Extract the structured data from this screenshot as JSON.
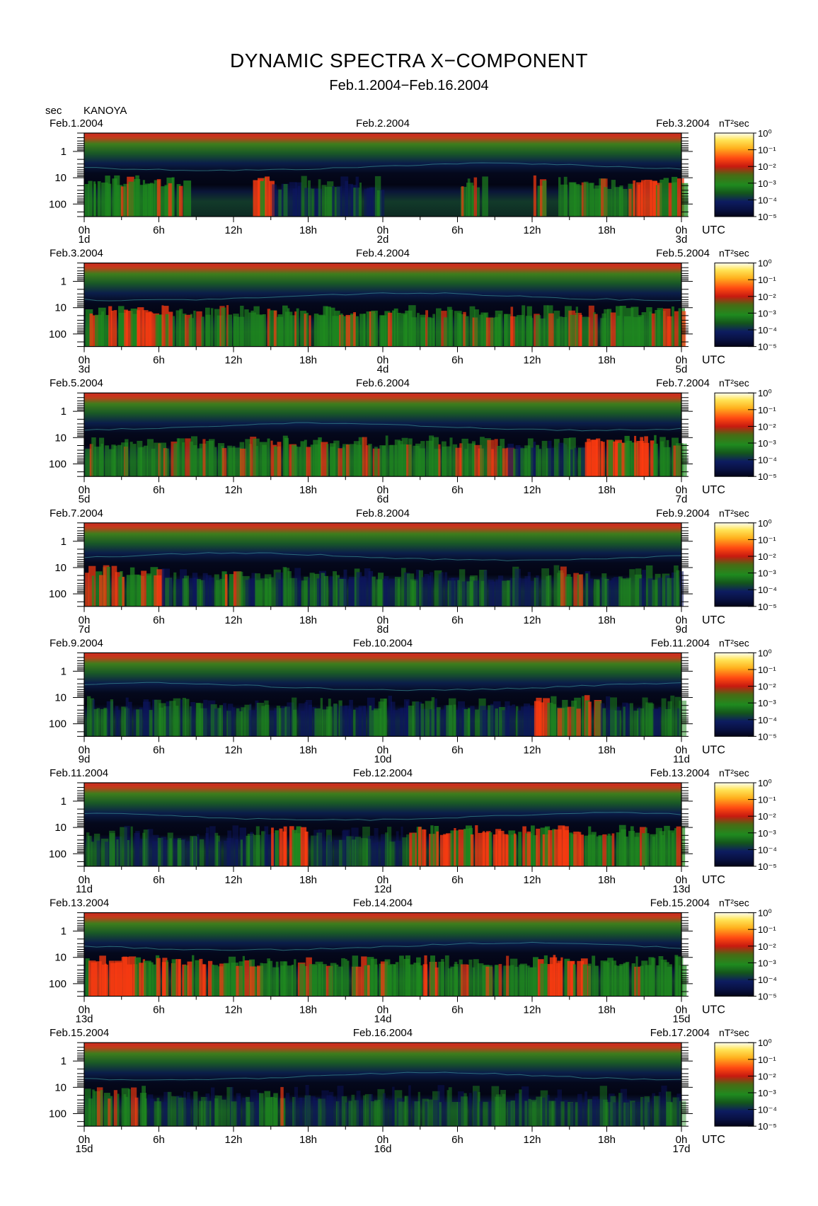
{
  "title": "DYNAMIC SPECTRA X−COMPONENT",
  "subtitle": "Feb.1.2004−Feb.16.2004",
  "unit_label": "sec",
  "station": "KANOYA",
  "colorbar_unit": "nT²sec",
  "colorbar_ticks": [
    "10⁰",
    "10⁻¹",
    "10⁻²",
    "10⁻³",
    "10⁻⁴",
    "10⁻⁵"
  ],
  "utc_label": "UTC",
  "y_ticks": [
    "1",
    "10",
    "100"
  ],
  "hour_ticks": [
    "0h",
    "6h",
    "12h",
    "18h",
    "0h",
    "6h",
    "12h",
    "18h",
    "0h"
  ],
  "colors": {
    "background": "#020418",
    "low": "#0d1560",
    "mid": "#1f8a1f",
    "high": "#ff3b10",
    "top_band": "#c83020"
  },
  "chart_data": {
    "type": "heatmap",
    "title": "DYNAMIC SPECTRA X−COMPONENT",
    "subtitle": "Feb.1.2004−Feb.16.2004",
    "ylabel": "sec",
    "ylim": [
      300,
      0.2
    ],
    "y_scale": "log",
    "y_inverted": true,
    "x_unit": "hours UTC",
    "color_scale": "log",
    "color_range": [
      1e-05,
      1
    ],
    "color_unit": "nT²sec",
    "panels": [
      {
        "left_date": "Feb.1.2004",
        "mid_date": "Feb.2.2004",
        "right_date": "Feb.3.2004",
        "start_day": "1d",
        "mid_day": "2d",
        "end_day": "3d",
        "activity": [
          [
            0,
            8,
            0.75
          ],
          [
            13.5,
            15,
            0.95
          ],
          [
            15,
            24,
            0.45
          ],
          [
            30,
            32,
            0.6
          ],
          [
            36,
            37,
            0.7
          ],
          [
            38,
            44,
            0.55
          ],
          [
            44,
            48,
            0.8
          ]
        ]
      },
      {
        "left_date": "Feb.3.2004",
        "mid_date": "Feb.4.2004",
        "right_date": "Feb.5.2004",
        "start_day": "3d",
        "mid_day": "4d",
        "end_day": "5d",
        "activity": [
          [
            0,
            7,
            0.8
          ],
          [
            7,
            14,
            0.6
          ],
          [
            14,
            18,
            0.7
          ],
          [
            18,
            26,
            0.75
          ],
          [
            26,
            36,
            0.6
          ],
          [
            36,
            42,
            0.55
          ],
          [
            42,
            48,
            0.7
          ]
        ]
      },
      {
        "left_date": "Feb.5.2004",
        "mid_date": "Feb.6.2004",
        "right_date": "Feb.7.2004",
        "start_day": "5d",
        "mid_day": "6d",
        "end_day": "7d",
        "activity": [
          [
            0,
            14,
            0.55
          ],
          [
            14,
            20,
            0.7
          ],
          [
            20,
            34,
            0.55
          ],
          [
            34,
            40,
            0.5
          ],
          [
            40,
            46,
            0.85
          ],
          [
            46,
            48,
            0.6
          ]
        ]
      },
      {
        "left_date": "Feb.7.2004",
        "mid_date": "Feb.8.2004",
        "right_date": "Feb.9.2004",
        "start_day": "7d",
        "mid_day": "8d",
        "end_day": "9d",
        "activity": [
          [
            0,
            6,
            0.7
          ],
          [
            6,
            11,
            0.45
          ],
          [
            11,
            12,
            0.8
          ],
          [
            12,
            18,
            0.35
          ],
          [
            18,
            24,
            0.5
          ],
          [
            24,
            30,
            0.35
          ],
          [
            30,
            38,
            0.3
          ],
          [
            38,
            40,
            0.55
          ],
          [
            40,
            48,
            0.45
          ]
        ]
      },
      {
        "left_date": "Feb.9.2004",
        "mid_date": "Feb.10.2004",
        "right_date": "Feb.11.2004",
        "start_day": "9d",
        "mid_day": "10d",
        "end_day": "11d",
        "activity": [
          [
            0,
            9,
            0.45
          ],
          [
            9,
            18,
            0.35
          ],
          [
            18,
            30,
            0.45
          ],
          [
            30,
            36,
            0.4
          ],
          [
            36,
            37,
            0.8
          ],
          [
            37,
            40,
            0.55
          ],
          [
            40,
            41,
            0.8
          ],
          [
            41,
            48,
            0.35
          ]
        ]
      },
      {
        "left_date": "Feb.11.2004",
        "mid_date": "Feb.12.2004",
        "right_date": "Feb.13.2004",
        "start_day": "11d",
        "mid_day": "12d",
        "end_day": "13d",
        "activity": [
          [
            0,
            12,
            0.3
          ],
          [
            12,
            15,
            0.45
          ],
          [
            15,
            18,
            0.9
          ],
          [
            18,
            26,
            0.2
          ],
          [
            26,
            40,
            0.8
          ],
          [
            40,
            48,
            0.7
          ]
        ]
      },
      {
        "left_date": "Feb.13.2004",
        "mid_date": "Feb.14.2004",
        "right_date": "Feb.15.2004",
        "start_day": "13d",
        "mid_day": "14d",
        "end_day": "15d",
        "activity": [
          [
            0,
            10,
            0.8
          ],
          [
            10,
            14,
            0.7
          ],
          [
            14,
            22,
            0.65
          ],
          [
            22,
            28,
            0.75
          ],
          [
            28,
            36,
            0.55
          ],
          [
            36,
            40,
            0.85
          ],
          [
            40,
            48,
            0.7
          ]
        ]
      },
      {
        "left_date": "Feb.15.2004",
        "mid_date": "Feb.16.2004",
        "right_date": "Feb.17.2004",
        "start_day": "15d",
        "mid_day": "16d",
        "end_day": "17d",
        "activity": [
          [
            0,
            5,
            0.55
          ],
          [
            5,
            14,
            0.25
          ],
          [
            14,
            16,
            0.6
          ],
          [
            16,
            30,
            0.2
          ],
          [
            30,
            38,
            0.25
          ],
          [
            38,
            48,
            0.2
          ]
        ]
      }
    ]
  }
}
